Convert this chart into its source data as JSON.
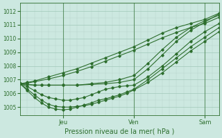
{
  "xlabel": "Pression niveau de la mer( hPa )",
  "bg_color": "#cce8e0",
  "grid_color": "#aaccbb",
  "line_color": "#2d6e2d",
  "ylim": [
    1004.4,
    1012.6
  ],
  "xlim": [
    0,
    84
  ],
  "xtick_positions": [
    18,
    48,
    78
  ],
  "xtick_labels": [
    "Jeu",
    "Ven",
    "Sam"
  ],
  "vline_positions": [
    18,
    48,
    78
  ],
  "ytick_positions": [
    1005,
    1006,
    1007,
    1008,
    1009,
    1010,
    1011,
    1012
  ],
  "ytick_labels": [
    "1005",
    "1006",
    "1007",
    "1008",
    "1009",
    "1010",
    "1011",
    "1012"
  ],
  "series": [
    {
      "x": [
        0,
        3,
        6,
        9,
        12,
        18,
        24,
        30,
        36,
        42,
        48,
        54,
        60,
        66,
        72,
        78,
        84
      ],
      "y": [
        1006.7,
        1006.65,
        1006.6,
        1006.6,
        1006.6,
        1006.6,
        1006.6,
        1006.65,
        1006.7,
        1006.8,
        1007.0,
        1007.8,
        1008.8,
        1009.8,
        1010.6,
        1011.2,
        1011.8
      ]
    },
    {
      "x": [
        0,
        3,
        6,
        9,
        12,
        18,
        24,
        30,
        36,
        42,
        48,
        54,
        60,
        66,
        72,
        78,
        84
      ],
      "y": [
        1006.7,
        1006.65,
        1006.6,
        1006.6,
        1006.6,
        1006.6,
        1006.6,
        1006.7,
        1006.8,
        1007.0,
        1007.3,
        1008.2,
        1009.2,
        1010.1,
        1010.8,
        1011.3,
        1011.7
      ]
    },
    {
      "x": [
        0,
        3,
        6,
        9,
        12,
        15,
        18,
        21,
        24,
        27,
        30,
        33,
        36,
        39,
        42,
        45,
        48,
        54,
        60,
        66,
        72,
        78,
        84
      ],
      "y": [
        1006.7,
        1006.5,
        1006.2,
        1005.9,
        1005.7,
        1005.6,
        1005.5,
        1005.5,
        1005.6,
        1005.7,
        1005.9,
        1006.1,
        1006.3,
        1006.4,
        1006.5,
        1006.55,
        1006.6,
        1007.2,
        1008.0,
        1008.9,
        1009.8,
        1010.5,
        1011.1
      ]
    },
    {
      "x": [
        0,
        3,
        6,
        9,
        12,
        15,
        18,
        21,
        24,
        27,
        30,
        33,
        36,
        39,
        42,
        45,
        48,
        54,
        60,
        66,
        72,
        78,
        84
      ],
      "y": [
        1006.7,
        1006.3,
        1005.9,
        1005.5,
        1005.2,
        1005.05,
        1005.0,
        1005.0,
        1005.05,
        1005.1,
        1005.2,
        1005.35,
        1005.5,
        1005.65,
        1005.8,
        1006.0,
        1006.25,
        1006.8,
        1007.5,
        1008.3,
        1009.1,
        1009.8,
        1010.5
      ]
    },
    {
      "x": [
        0,
        3,
        6,
        9,
        12,
        15,
        18,
        21,
        24,
        27,
        30,
        33,
        36,
        39,
        42,
        45,
        48,
        54,
        60,
        66,
        72,
        78,
        84
      ],
      "y": [
        1006.7,
        1006.2,
        1005.7,
        1005.3,
        1005.0,
        1004.85,
        1004.8,
        1004.85,
        1005.0,
        1005.15,
        1005.3,
        1005.5,
        1005.6,
        1005.75,
        1005.9,
        1006.1,
        1006.3,
        1007.0,
        1007.8,
        1008.6,
        1009.4,
        1010.1,
        1010.8
      ]
    },
    {
      "x": [
        0,
        3,
        6,
        12,
        18,
        24,
        30,
        36,
        42,
        48,
        54,
        60,
        66,
        72,
        78,
        84
      ],
      "y": [
        1006.7,
        1006.8,
        1006.9,
        1007.2,
        1007.5,
        1007.8,
        1008.2,
        1008.6,
        1009.0,
        1009.4,
        1009.9,
        1010.4,
        1010.8,
        1011.1,
        1011.4,
        1011.85
      ]
    },
    {
      "x": [
        0,
        3,
        6,
        12,
        18,
        24,
        30,
        36,
        42,
        48,
        54,
        60,
        66,
        72,
        78,
        84
      ],
      "y": [
        1006.7,
        1006.75,
        1006.85,
        1007.05,
        1007.3,
        1007.6,
        1007.95,
        1008.35,
        1008.75,
        1009.15,
        1009.6,
        1010.05,
        1010.45,
        1010.8,
        1011.1,
        1011.55
      ]
    }
  ]
}
